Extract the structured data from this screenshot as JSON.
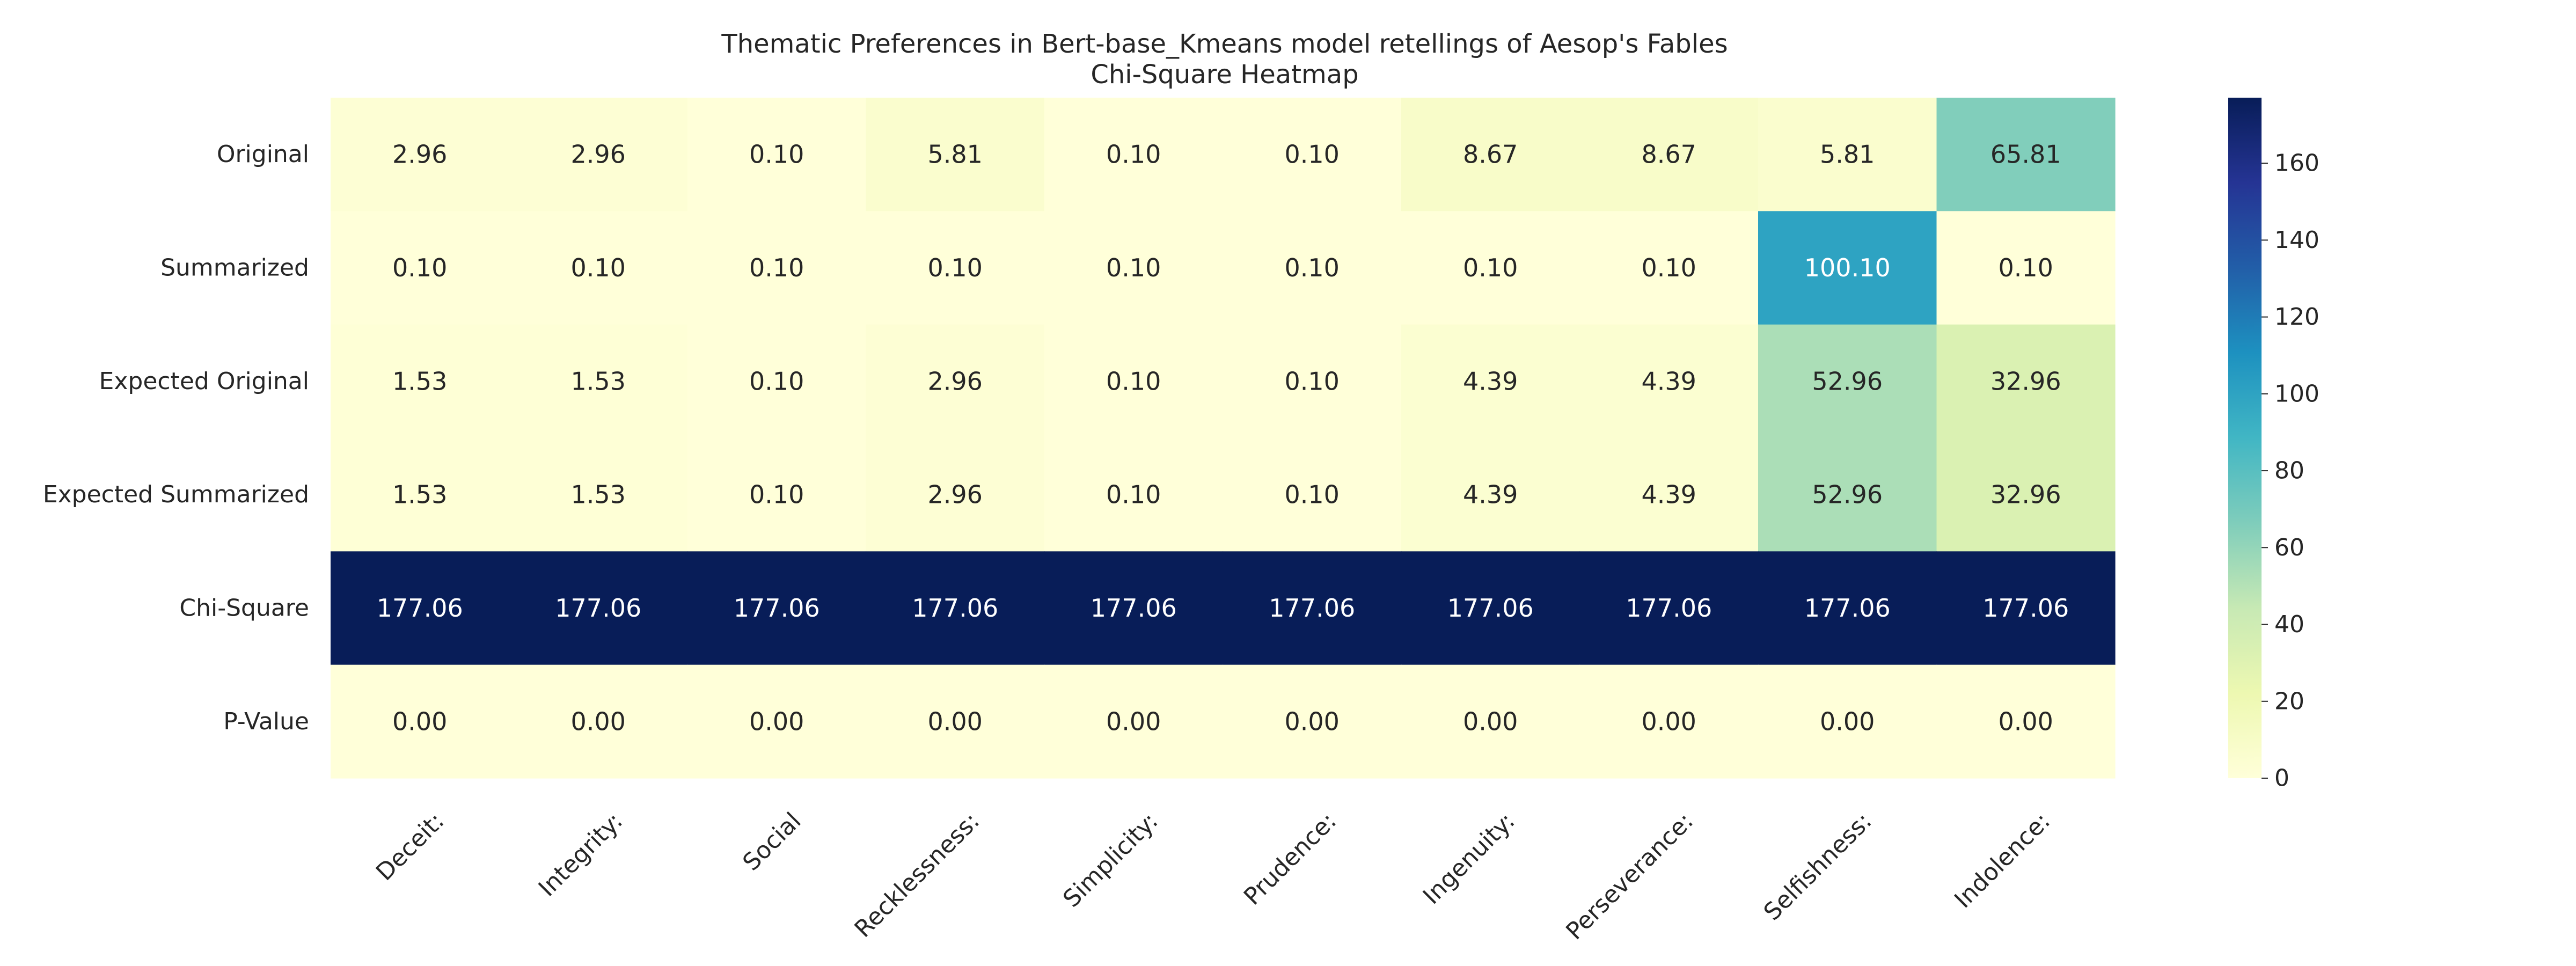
{
  "chart_data": {
    "type": "heatmap",
    "title": "Thematic Preferences in Bert-base_Kmeans model retellings of Aesop's Fables",
    "subtitle": "Chi-Square Heatmap",
    "xlabel": "",
    "ylabel": "",
    "columns": [
      "Deceit:",
      "Integrity:",
      "Social",
      "Recklessness:",
      "Simplicity:",
      "Prudence:",
      "Ingenuity:",
      "Perseverance:",
      "Selfishness:",
      "Indolence:"
    ],
    "rows": [
      "Original",
      "Summarized",
      "Expected Original",
      "Expected Summarized",
      "Chi-Square",
      "P-Value"
    ],
    "values": [
      [
        2.96,
        2.96,
        0.1,
        5.81,
        0.1,
        0.1,
        8.67,
        8.67,
        5.81,
        65.81
      ],
      [
        0.1,
        0.1,
        0.1,
        0.1,
        0.1,
        0.1,
        0.1,
        0.1,
        100.1,
        0.1
      ],
      [
        1.53,
        1.53,
        0.1,
        2.96,
        0.1,
        0.1,
        4.39,
        4.39,
        52.96,
        32.96
      ],
      [
        1.53,
        1.53,
        0.1,
        2.96,
        0.1,
        0.1,
        4.39,
        4.39,
        52.96,
        32.96
      ],
      [
        177.06,
        177.06,
        177.06,
        177.06,
        177.06,
        177.06,
        177.06,
        177.06,
        177.06,
        177.06
      ],
      [
        0.0,
        0.0,
        0.0,
        0.0,
        0.0,
        0.0,
        0.0,
        0.0,
        0.0,
        0.0
      ]
    ],
    "colormap": "YlGnBu",
    "colorbar": {
      "range": [
        0,
        177.06
      ],
      "ticks": [
        0,
        20,
        40,
        60,
        80,
        100,
        120,
        140,
        160
      ]
    },
    "grid": false,
    "legend": "none"
  }
}
